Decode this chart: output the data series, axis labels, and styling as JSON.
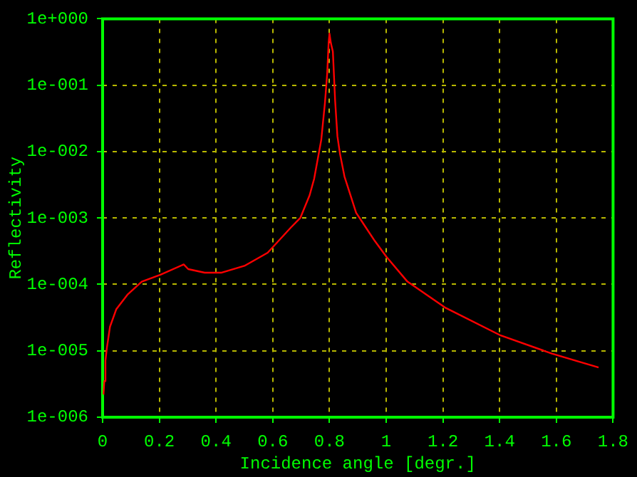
{
  "chart_data": {
    "type": "line",
    "xlabel": "Incidence angle [degr.]",
    "ylabel": "Reflectivity",
    "x": [
      0.003,
      0.006,
      0.01,
      0.015,
      0.026,
      0.048,
      0.089,
      0.138,
      0.204,
      0.286,
      0.302,
      0.36,
      0.418,
      0.5,
      0.582,
      0.664,
      0.697,
      0.73,
      0.746,
      0.771,
      0.784,
      0.792,
      0.797,
      0.8,
      0.805,
      0.812,
      0.82,
      0.828,
      0.837,
      0.853,
      0.894,
      0.96,
      1.001,
      1.075,
      1.207,
      1.404,
      1.584,
      1.749
    ],
    "series": [
      {
        "color": "#ff0000",
        "values": [
          2.2e-06,
          3.5e-06,
          7.1e-06,
          1.1e-05,
          2.3e-05,
          4.2e-05,
          7.1e-05,
          0.00011,
          0.00014,
          0.0002,
          0.00017,
          0.00015,
          0.00015,
          0.00019,
          0.0003,
          0.00072,
          0.001,
          0.0022,
          0.0039,
          0.015,
          0.054,
          0.15,
          0.43,
          0.6,
          0.43,
          0.32,
          0.058,
          0.017,
          0.0093,
          0.0042,
          0.0012,
          0.00045,
          0.00026,
          0.00011,
          4.5e-05,
          1.7e-05,
          9.1e-06,
          5.6e-06
        ]
      }
    ],
    "xlim": [
      0,
      1.8
    ],
    "xticks": [
      0,
      0.2,
      0.4,
      0.6,
      0.8,
      1,
      1.2,
      1.4,
      1.6,
      1.8
    ],
    "ylim": [
      1e-06,
      1
    ],
    "yticks": [
      {
        "value": 1e-06,
        "label": "1e-006"
      },
      {
        "value": 1e-05,
        "label": "1e-005"
      },
      {
        "value": 0.0001,
        "label": "1e-004"
      },
      {
        "value": 0.001,
        "label": "1e-003"
      },
      {
        "value": 0.01,
        "label": "1e-002"
      },
      {
        "value": 0.1,
        "label": "1e-001"
      },
      {
        "value": 1,
        "label": "1e+000"
      }
    ],
    "log": "y",
    "grid": true,
    "marker": "none",
    "line_style": "solid"
  }
}
